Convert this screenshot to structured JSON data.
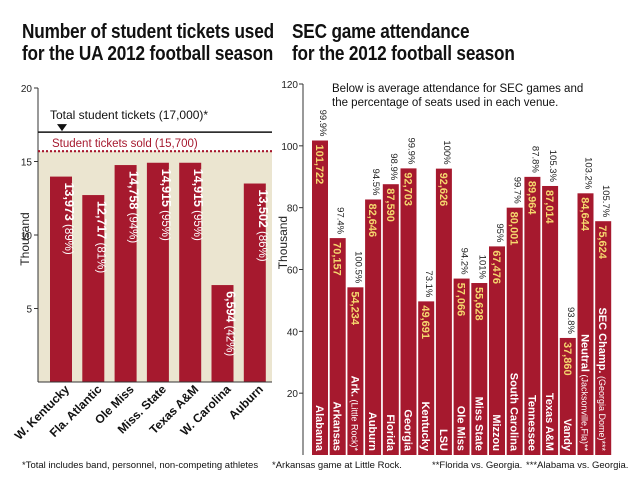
{
  "left": {
    "title_line1": "Number of student tickets used",
    "title_line2": "for the UA 2012 football season",
    "footnote": "*Total includes band, personnel, non-competing athletes"
  },
  "right": {
    "title_line1": "SEC game attendance",
    "title_line2": "for the 2012 football season",
    "footnote1": "*Arkansas game at Little Rock.",
    "footnote2": "**Florida vs. Georgia.",
    "footnote3": "***Alabama  vs. Georgia."
  },
  "chart_data": [
    {
      "type": "bar",
      "ylabel": "Thousand",
      "ylim": [
        0,
        20
      ],
      "yticks": [
        5,
        10,
        15,
        20
      ],
      "categories": [
        "W. Kentucky",
        "Fla. Atlantic",
        "Ole Miss",
        "Miss. State",
        "Texas A&M",
        "W. Carolina",
        "Auburn"
      ],
      "values": [
        13973,
        12717,
        14758,
        14915,
        14915,
        6594,
        13502
      ],
      "value_labels": [
        "13,973",
        "12,717",
        "14,758",
        "14,915",
        "14,915",
        "6,594",
        "13,502"
      ],
      "pct_labels": [
        "(89%)",
        "(81%)",
        "(94%)",
        "(95%)",
        "(95%)",
        "(42%)",
        "(86%)"
      ],
      "annotations": [
        {
          "label": "Total student tickets (17,000)*",
          "value": 17000,
          "style": "solid-line-with-arrow"
        },
        {
          "label": "Student tickets sold (15,700)",
          "value": 15700,
          "style": "dashed-line"
        }
      ],
      "colors": {
        "bar": "#a6192e",
        "shade": "#ebe5d0",
        "dashed": "#a6192e"
      }
    },
    {
      "type": "bar",
      "ylabel": "Thousand",
      "ylim": [
        0,
        120
      ],
      "yticks": [
        20,
        40,
        60,
        80,
        100,
        120
      ],
      "note": "Below is average attendance for SEC games and the percentage of seats used in each venue.",
      "categories": [
        "Alabama",
        "Arkansas",
        "Ark.",
        "Auburn",
        "Florida",
        "Georgia",
        "Kentucky",
        "LSU",
        "Ole Miss",
        "Miss State",
        "Mizzou",
        "South Carolina",
        "Tennessee",
        "Texas A&M",
        "Vandy",
        "Neutral",
        "SEC Champ."
      ],
      "category_subs": [
        "",
        "",
        "(Little Rock)*",
        "",
        "",
        "",
        "",
        "",
        "",
        "",
        "",
        "",
        "",
        "",
        "",
        "(Jacksonville,Fla)**",
        "(Georgia Dome)***"
      ],
      "values": [
        101722,
        70157,
        54234,
        82646,
        87590,
        92703,
        49691,
        92626,
        57066,
        55628,
        67476,
        80001,
        89964,
        87014,
        37860,
        84644,
        75624
      ],
      "value_labels": [
        "101,722",
        "70,157",
        "54,234",
        "82,646",
        "87,590",
        "92,703",
        "49,691",
        "92,626",
        "57,066",
        "55,628",
        "67,476",
        "80,001",
        "89,964",
        "87,014",
        "37,860",
        "84,644",
        "75,624"
      ],
      "pct_labels": [
        "99.9%",
        "97.4%",
        "100.5%",
        "94.5%",
        "98.9%",
        "99.9%",
        "73.1%",
        "100%",
        "94.2%",
        "101%",
        "95%",
        "99.7%",
        "87.8%",
        "105.3%",
        "93.8%",
        "103.2%",
        "105.7%"
      ],
      "colors": {
        "bar": "#a6192e",
        "value_text": "#f5d76e"
      }
    }
  ]
}
